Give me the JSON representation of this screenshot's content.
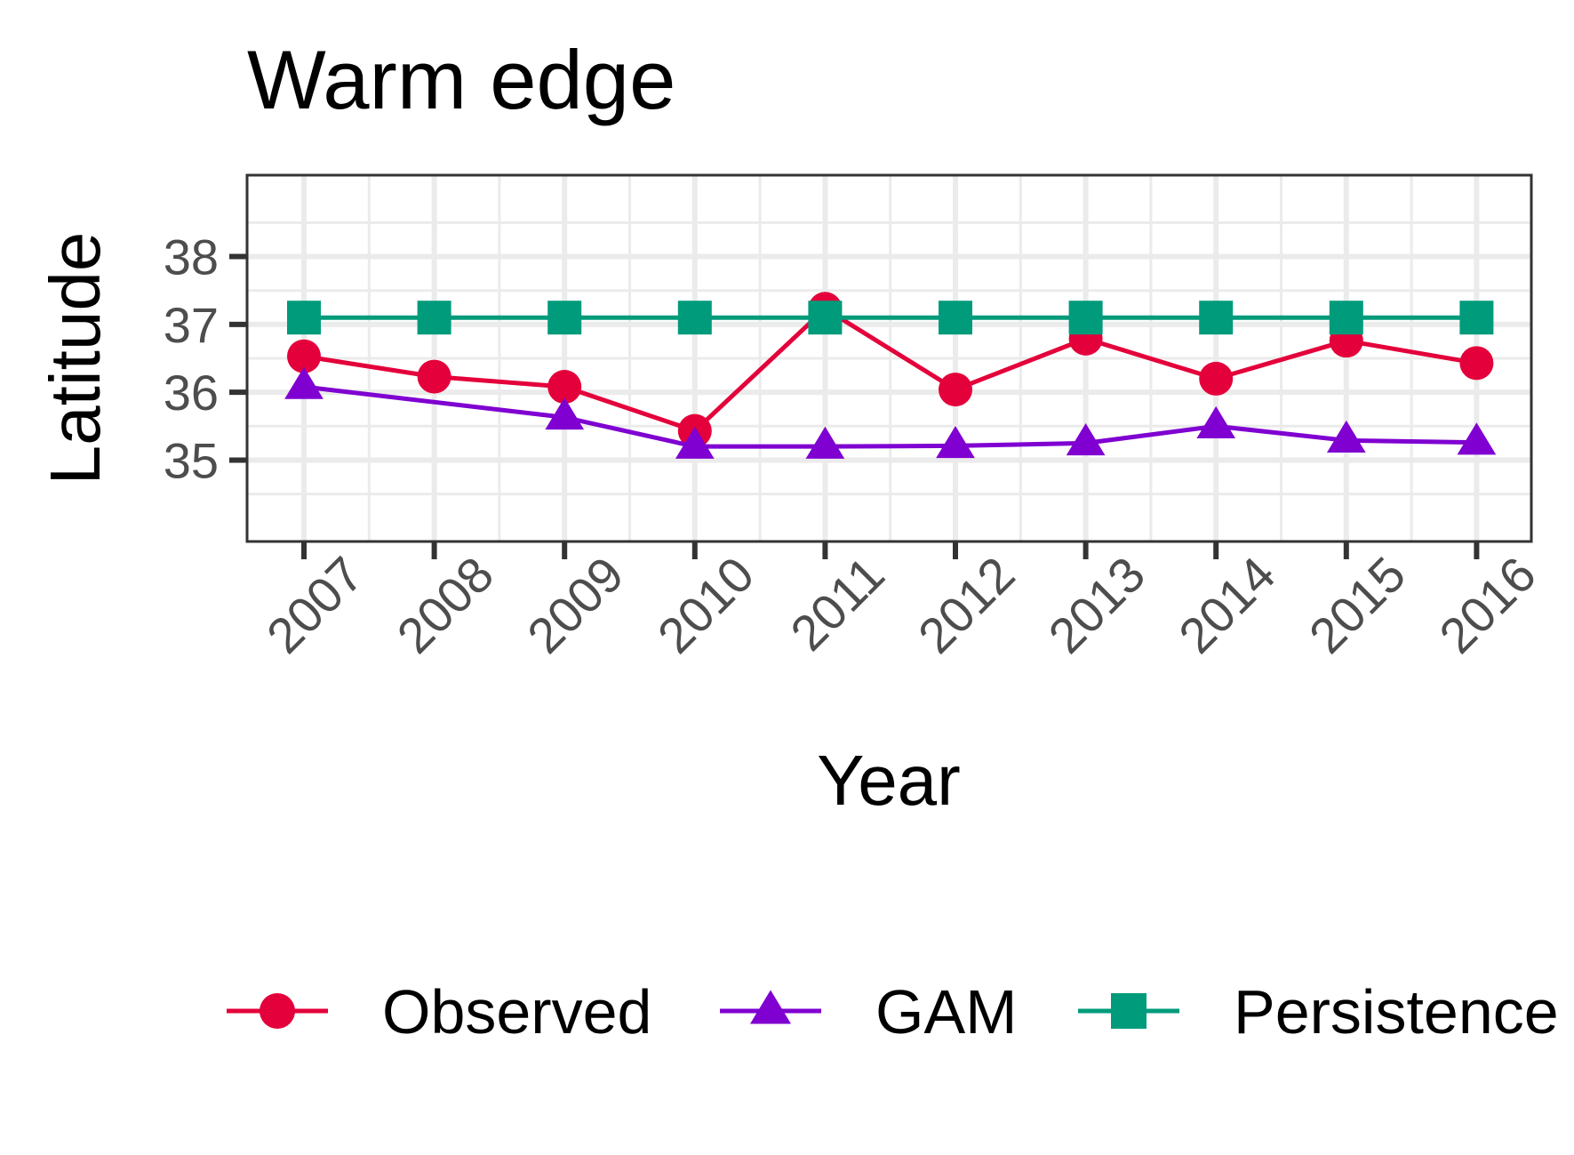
{
  "chart_data": {
    "type": "line",
    "title": "Warm edge",
    "xlabel": "Year",
    "ylabel": "Latitude",
    "x": [
      "2007",
      "2008",
      "2009",
      "2010",
      "2011",
      "2012",
      "2013",
      "2014",
      "2015",
      "2016"
    ],
    "y_ticks": [
      "35",
      "36",
      "37",
      "38"
    ],
    "ylim": [
      33.8,
      39.2
    ],
    "grid": true,
    "legend_position": "bottom",
    "series": [
      {
        "name": "Observed",
        "color": "#e4003a",
        "marker": "circle",
        "values": [
          36.53,
          36.23,
          36.08,
          35.43,
          37.23,
          36.04,
          36.79,
          36.2,
          36.76,
          36.43
        ]
      },
      {
        "name": "GAM",
        "color": "#7f00d1",
        "marker": "triangle",
        "values": [
          36.08,
          null,
          35.63,
          35.2,
          35.2,
          35.21,
          35.25,
          35.5,
          35.29,
          35.26
        ]
      },
      {
        "name": "Persistence",
        "color": "#009b7b",
        "marker": "square",
        "values": [
          37.1,
          37.1,
          37.1,
          37.1,
          37.1,
          37.1,
          37.1,
          37.1,
          37.1,
          37.1
        ]
      }
    ]
  }
}
